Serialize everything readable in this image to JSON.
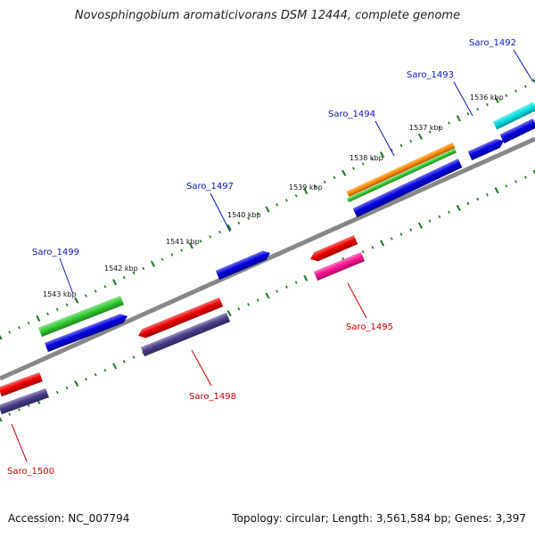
{
  "title": "Novosphingobium aromaticivorans DSM 12444, complete genome",
  "footer": {
    "accession": "Accession: NC_007794",
    "topology": "Topology: circular; Length: 3,561,584 bp; Genes: 3,397"
  },
  "kbp_labels": [
    "1536 kbp",
    "1537 kbp",
    "1538 kbp",
    "1539 kbp",
    "1540 kbp",
    "1541 kbp",
    "1542 kbp",
    "1543 kbp"
  ],
  "genes": [
    {
      "name": "Saro_1492",
      "strand": "+",
      "color": "#00e0e0"
    },
    {
      "name": "Saro_1493",
      "strand": "+",
      "color": "#0000e0"
    },
    {
      "name": "Saro_1494",
      "strand": "+",
      "color": "#ff8c00"
    },
    {
      "name": "Saro_1495",
      "strand": "-",
      "color": "#ff1493"
    },
    {
      "name": "Saro_1497",
      "strand": "+",
      "color": "#0000e0"
    },
    {
      "name": "Saro_1498",
      "strand": "-",
      "color": "#f00000"
    },
    {
      "name": "Saro_1499",
      "strand": "+",
      "color": "#33cc33"
    },
    {
      "name": "Saro_1500",
      "strand": "-",
      "color": "#f00000"
    }
  ],
  "colors": {
    "blue_cog": "#0000e0",
    "green_cog": "#33cc33",
    "purple_cog": "#483d8b",
    "red_cog": "#f00000",
    "backbone": "#888888",
    "ticks": "#1a7a1a"
  }
}
